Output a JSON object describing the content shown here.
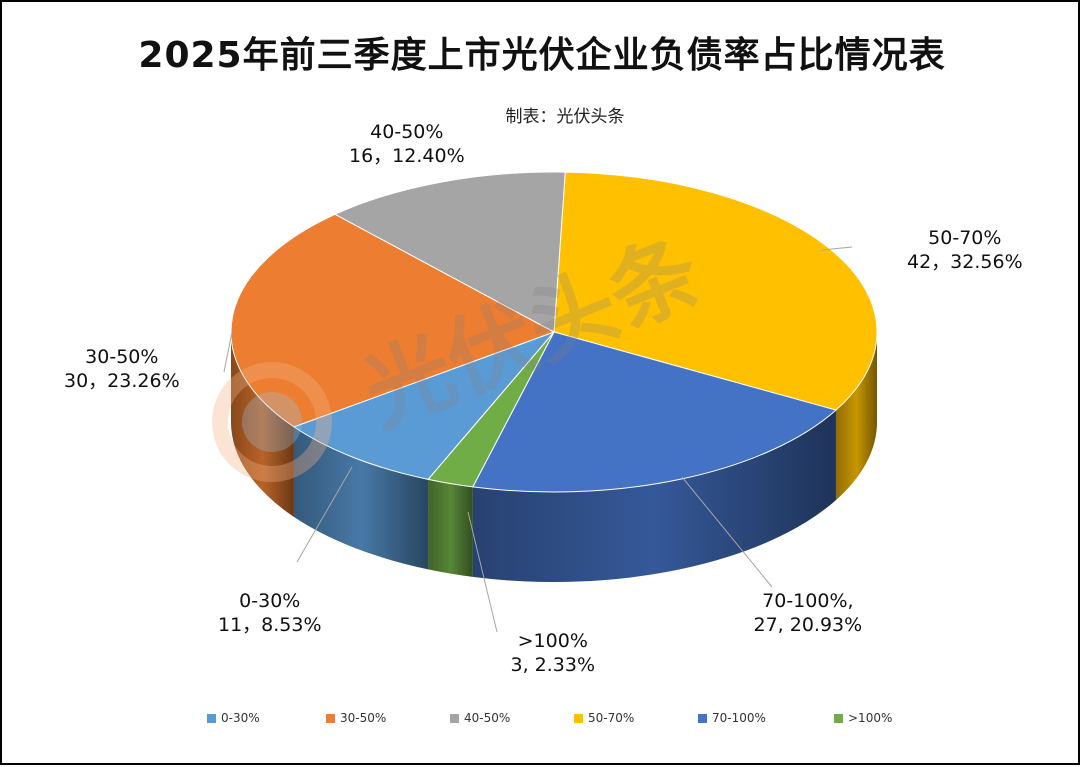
{
  "title": "2025年前三季度上市光伏企业负债率占比情况表",
  "subtitle": "制表：光伏头条",
  "watermark": "光伏头条",
  "chart_data": {
    "type": "pie",
    "variant": "3d",
    "categories": [
      "0-30%",
      "30-50%",
      "40-50%",
      "50-70%",
      "70-100%",
      ">100%"
    ],
    "values": [
      11,
      30,
      16,
      42,
      27,
      3
    ],
    "percents": [
      8.53,
      23.26,
      12.4,
      32.56,
      20.93,
      2.33
    ],
    "colors": [
      "#5b9bd5",
      "#ed7d31",
      "#a5a5a5",
      "#ffc000",
      "#4472c4",
      "#70ad47"
    ],
    "data_labels": [
      {
        "category": "0-30%",
        "text": "11，8.53%"
      },
      {
        "category": "30-50%",
        "text": "30，23.26%"
      },
      {
        "category": "40-50%",
        "text": "16，12.40%"
      },
      {
        "category": "50-70%",
        "text": "42，32.56%"
      },
      {
        "category": "70-100%,",
        "text": "27, 20.93%"
      },
      {
        "category": ">100%",
        "text": "3, 2.33%"
      }
    ],
    "legend_position": "bottom"
  }
}
